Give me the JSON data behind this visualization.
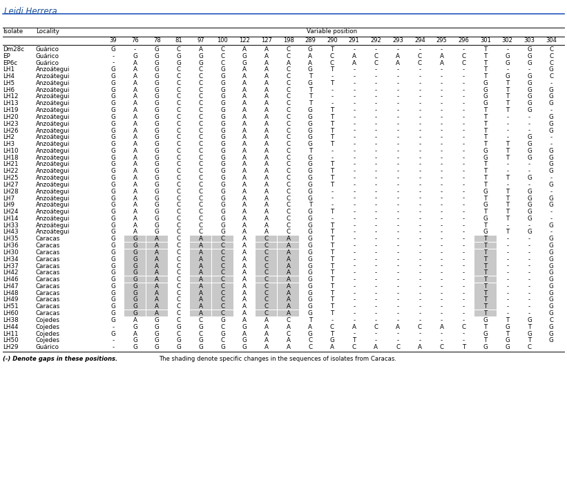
{
  "title": "Leidi Herrera",
  "col_header": [
    "39",
    "76",
    "78",
    "81",
    "97",
    "100",
    "122",
    "127",
    "198",
    "289",
    "290",
    "291",
    "292",
    "293",
    "294",
    "295",
    "296",
    "301",
    "302",
    "303",
    "304"
  ],
  "rows": [
    [
      "Dm28c",
      "Guárico",
      "G",
      "-",
      "G",
      "C",
      "A",
      "C",
      "A",
      "A",
      "C",
      "G",
      "T",
      "-",
      "-",
      "-",
      "-",
      "-",
      "-",
      "T",
      "-",
      "G",
      "C",
      false
    ],
    [
      "EP",
      "Guárico",
      "-",
      "G",
      "G",
      "G",
      "G",
      "C",
      "G",
      "A",
      "C",
      "A",
      "C",
      "A",
      "C",
      "A",
      "C",
      "A",
      "C",
      "T",
      "G",
      "G",
      "C",
      false
    ],
    [
      "EP6c",
      "Guárico",
      "-",
      "A",
      "G",
      "G",
      "G",
      "C",
      "G",
      "A",
      "A",
      "A",
      "C",
      "A",
      "C",
      "A",
      "C",
      "A",
      "C",
      "T",
      "G",
      "G",
      "C",
      false
    ],
    [
      "LH1",
      "Anzoátegui",
      "G",
      "A",
      "G",
      "C",
      "C",
      "G",
      "A",
      "A",
      "C",
      "G",
      "T",
      "-",
      "-",
      "-",
      "-",
      "-",
      "-",
      "T",
      "-",
      "-",
      "G",
      false
    ],
    [
      "LH4",
      "Anzoátegui",
      "G",
      "A",
      "G",
      "C",
      "C",
      "G",
      "A",
      "A",
      "C",
      "T",
      "-",
      "-",
      "-",
      "-",
      "-",
      "-",
      "-",
      "T",
      "G",
      "G",
      "C",
      false
    ],
    [
      "LH5",
      "Anzoátegui",
      "G",
      "A",
      "G",
      "C",
      "C",
      "G",
      "A",
      "A",
      "C",
      "G",
      "T",
      "-",
      "-",
      "-",
      "-",
      "-",
      "-",
      "G",
      "T",
      "G",
      "-",
      false
    ],
    [
      "LH6",
      "Anzoátegui",
      "G",
      "A",
      "G",
      "C",
      "C",
      "G",
      "A",
      "A",
      "C",
      "T",
      "-",
      "-",
      "-",
      "-",
      "-",
      "-",
      "-",
      "G",
      "T",
      "G",
      "G",
      false
    ],
    [
      "LH12",
      "Anzoátegui",
      "G",
      "A",
      "G",
      "C",
      "C",
      "G",
      "A",
      "A",
      "C",
      "T",
      "-",
      "-",
      "-",
      "-",
      "-",
      "-",
      "-",
      "G",
      "T",
      "G",
      "G",
      false
    ],
    [
      "LH13",
      "Anzoátegui",
      "G",
      "A",
      "G",
      "C",
      "C",
      "G",
      "A",
      "A",
      "C",
      "T",
      "-",
      "-",
      "-",
      "-",
      "-",
      "-",
      "-",
      "G",
      "T",
      "G",
      "G",
      false
    ],
    [
      "LH19",
      "Anzoátegui",
      "G",
      "A",
      "G",
      "C",
      "C",
      "G",
      "A",
      "A",
      "C",
      "G",
      "T",
      "-",
      "-",
      "-",
      "-",
      "-",
      "-",
      "T",
      "T",
      "G",
      "-",
      false
    ],
    [
      "LH20",
      "Anzoátegui",
      "G",
      "A",
      "G",
      "C",
      "C",
      "G",
      "A",
      "A",
      "C",
      "G",
      "T",
      "-",
      "-",
      "-",
      "-",
      "-",
      "-",
      "T",
      "-",
      "-",
      "G",
      false
    ],
    [
      "LH23",
      "Anzoátegui",
      "G",
      "A",
      "G",
      "C",
      "C",
      "G",
      "A",
      "A",
      "C",
      "G",
      "T",
      "-",
      "-",
      "-",
      "-",
      "-",
      "-",
      "T",
      "-",
      "-",
      "G",
      false
    ],
    [
      "LH26",
      "Anzoátegui",
      "G",
      "A",
      "G",
      "C",
      "C",
      "G",
      "A",
      "A",
      "C",
      "G",
      "T",
      "-",
      "-",
      "-",
      "-",
      "-",
      "-",
      "T",
      "-",
      "-",
      "G",
      false
    ],
    [
      "LH2",
      "Anzoátegui",
      "G",
      "A",
      "G",
      "C",
      "C",
      "G",
      "A",
      "A",
      "C",
      "G",
      "T",
      "-",
      "-",
      "-",
      "-",
      "-",
      "-",
      "T",
      "-",
      "G",
      "-",
      false
    ],
    [
      "LH3",
      "Anzoátegui",
      "G",
      "A",
      "G",
      "C",
      "C",
      "G",
      "A",
      "A",
      "C",
      "G",
      "T",
      "-",
      "-",
      "-",
      "-",
      "-",
      "-",
      "T",
      "T",
      "G",
      "-",
      false
    ],
    [
      "LH10",
      "Anzoátegui",
      "G",
      "A",
      "G",
      "C",
      "C",
      "G",
      "A",
      "A",
      "C",
      "T",
      "-",
      "-",
      "-",
      "-",
      "-",
      "-",
      "-",
      "G",
      "T",
      "G",
      "G",
      false
    ],
    [
      "LH18",
      "Anzoátegui",
      "G",
      "A",
      "G",
      "C",
      "C",
      "G",
      "A",
      "A",
      "C",
      "G",
      "-",
      "-",
      "-",
      "-",
      "-",
      "-",
      "-",
      "G",
      "T",
      "G",
      "G",
      false
    ],
    [
      "LH21",
      "Anzoátegui",
      "G",
      "A",
      "G",
      "C",
      "C",
      "G",
      "A",
      "A",
      "C",
      "G",
      "T",
      "-",
      "-",
      "-",
      "-",
      "-",
      "-",
      "T",
      "-",
      "-",
      "G",
      false
    ],
    [
      "LH22",
      "Anzoátegui",
      "G",
      "A",
      "G",
      "C",
      "C",
      "G",
      "A",
      "A",
      "C",
      "G",
      "T",
      "-",
      "-",
      "-",
      "-",
      "-",
      "-",
      "T",
      "-",
      "-",
      "G",
      false
    ],
    [
      "LH25",
      "Anzoátegui",
      "G",
      "A",
      "G",
      "C",
      "C",
      "G",
      "A",
      "A",
      "C",
      "G",
      "T",
      "-",
      "-",
      "-",
      "-",
      "-",
      "-",
      "T",
      "T",
      "G",
      "-",
      false
    ],
    [
      "LH27",
      "Anzoátegui",
      "G",
      "A",
      "G",
      "C",
      "C",
      "G",
      "A",
      "A",
      "C",
      "G",
      "T",
      "-",
      "-",
      "-",
      "-",
      "-",
      "-",
      "T",
      "-",
      "-",
      "G",
      false
    ],
    [
      "LH28",
      "Anzoátegui",
      "G",
      "A",
      "G",
      "C",
      "C",
      "G",
      "A",
      "A",
      "C",
      "G",
      "-",
      "-",
      "-",
      "-",
      "-",
      "-",
      "-",
      "G",
      "T",
      "G",
      "-",
      false
    ],
    [
      "LH7",
      "Anzoátegui",
      "G",
      "A",
      "G",
      "C",
      "C",
      "G",
      "A",
      "A",
      "C",
      "G",
      "-",
      "-",
      "-",
      "-",
      "-",
      "-",
      "-",
      "T",
      "T",
      "G",
      "G",
      false
    ],
    [
      "LH9",
      "Anzoátegui",
      "G",
      "A",
      "G",
      "C",
      "C",
      "G",
      "A",
      "A",
      "C",
      "T",
      "-",
      "-",
      "-",
      "-",
      "-",
      "-",
      "-",
      "G",
      "T",
      "G",
      "G",
      false
    ],
    [
      "LH24",
      "Anzoátegui",
      "G",
      "A",
      "G",
      "C",
      "C",
      "G",
      "A",
      "A",
      "C",
      "G",
      "T",
      "-",
      "-",
      "-",
      "-",
      "-",
      "-",
      "T",
      "T",
      "G",
      "-",
      false
    ],
    [
      "LH14",
      "Anzoátegui",
      "G",
      "A",
      "G",
      "C",
      "C",
      "G",
      "A",
      "A",
      "C",
      "G",
      "-",
      "-",
      "-",
      "-",
      "-",
      "-",
      "-",
      "G",
      "T",
      "G",
      "-",
      false
    ],
    [
      "LH33",
      "Anzoátegui",
      "G",
      "A",
      "G",
      "C",
      "C",
      "G",
      "A",
      "A",
      "C",
      "G",
      "T",
      "-",
      "-",
      "-",
      "-",
      "-",
      "-",
      "T",
      "-",
      "-",
      "G",
      false
    ],
    [
      "LH43",
      "Anzoátegui",
      "G",
      "A",
      "G",
      "C",
      "C",
      "G",
      "A",
      "A",
      "C",
      "G",
      "T",
      "-",
      "-",
      "-",
      "-",
      "-",
      "-",
      "G",
      "T",
      "G",
      "-",
      false
    ],
    [
      "LH35",
      "Caracas",
      "G",
      "G",
      "A",
      "C",
      "A",
      "C",
      "A",
      "C",
      "A",
      "G",
      "T",
      "-",
      "-",
      "-",
      "-",
      "-",
      "-",
      "T",
      "-",
      "-",
      "G",
      true
    ],
    [
      "LH36",
      "Caracas",
      "G",
      "G",
      "A",
      "C",
      "A",
      "C",
      "A",
      "C",
      "A",
      "G",
      "T",
      "-",
      "-",
      "-",
      "-",
      "-",
      "-",
      "T",
      "-",
      "-",
      "G",
      true
    ],
    [
      "LH30",
      "Caracas",
      "G",
      "G",
      "A",
      "C",
      "A",
      "C",
      "A",
      "C",
      "A",
      "G",
      "T",
      "-",
      "-",
      "-",
      "-",
      "-",
      "-",
      "T",
      "-",
      "-",
      "G",
      true
    ],
    [
      "LH34",
      "Caracas",
      "G",
      "G",
      "A",
      "C",
      "A",
      "C",
      "A",
      "C",
      "A",
      "G",
      "T",
      "-",
      "-",
      "-",
      "-",
      "-",
      "-",
      "T",
      "-",
      "-",
      "G",
      true
    ],
    [
      "LH37",
      "Caracas",
      "G",
      "G",
      "A",
      "C",
      "A",
      "C",
      "A",
      "C",
      "A",
      "G",
      "T",
      "-",
      "-",
      "-",
      "-",
      "-",
      "-",
      "T",
      "-",
      "-",
      "G",
      true
    ],
    [
      "LH42",
      "Caracas",
      "G",
      "G",
      "A",
      "C",
      "A",
      "C",
      "A",
      "C",
      "A",
      "G",
      "T",
      "-",
      "-",
      "-",
      "-",
      "-",
      "-",
      "T",
      "-",
      "-",
      "G",
      true
    ],
    [
      "LH46",
      "Caracas",
      "G",
      "G",
      "A",
      "C",
      "A",
      "C",
      "A",
      "C",
      "A",
      "G",
      "T",
      "-",
      "-",
      "-",
      "-",
      "-",
      "-",
      "T",
      "-",
      "-",
      "G",
      true
    ],
    [
      "LH47",
      "Caracas",
      "G",
      "G",
      "A",
      "C",
      "A",
      "C",
      "A",
      "C",
      "A",
      "G",
      "T",
      "-",
      "-",
      "-",
      "-",
      "-",
      "-",
      "T",
      "-",
      "-",
      "G",
      true
    ],
    [
      "LH48",
      "Caracas",
      "G",
      "G",
      "A",
      "C",
      "A",
      "C",
      "A",
      "C",
      "A",
      "G",
      "T",
      "-",
      "-",
      "-",
      "-",
      "-",
      "-",
      "T",
      "-",
      "-",
      "G",
      true
    ],
    [
      "LH49",
      "Caracas",
      "G",
      "G",
      "A",
      "C",
      "A",
      "C",
      "A",
      "C",
      "A",
      "G",
      "T",
      "-",
      "-",
      "-",
      "-",
      "-",
      "-",
      "T",
      "-",
      "-",
      "G",
      true
    ],
    [
      "LH51",
      "Caracas",
      "G",
      "G",
      "A",
      "C",
      "A",
      "C",
      "A",
      "C",
      "A",
      "G",
      "T",
      "-",
      "-",
      "-",
      "-",
      "-",
      "-",
      "T",
      "-",
      "-",
      "G",
      true
    ],
    [
      "LH60",
      "Caracas",
      "G",
      "G",
      "A",
      "C",
      "A",
      "C",
      "A",
      "C",
      "A",
      "G",
      "T",
      "-",
      "-",
      "-",
      "-",
      "-",
      "-",
      "T",
      "-",
      "-",
      "G",
      true
    ],
    [
      "LH38",
      "Cojedes",
      "G",
      "A",
      "G",
      "C",
      "C",
      "G",
      "A",
      "A",
      "C",
      "T",
      "-",
      "-",
      "-",
      "-",
      "-",
      "-",
      "-",
      "G",
      "T",
      "G",
      "C",
      false
    ],
    [
      "LH44",
      "Cojedes",
      "-",
      "G",
      "G",
      "G",
      "G",
      "C",
      "G",
      "A",
      "A",
      "A",
      "C",
      "A",
      "C",
      "A",
      "C",
      "A",
      "C",
      "T",
      "G",
      "T",
      "G",
      false
    ],
    [
      "LH11",
      "Cojedes",
      "G",
      "A",
      "G",
      "C",
      "C",
      "G",
      "A",
      "A",
      "C",
      "G",
      "T",
      "-",
      "-",
      "-",
      "-",
      "-",
      "-",
      "G",
      "T",
      "G",
      "G",
      false
    ],
    [
      "LH50",
      "Cojedes",
      "-",
      "G",
      "G",
      "G",
      "G",
      "C",
      "G",
      "A",
      "A",
      "C",
      "G",
      "T",
      "-",
      "-",
      "-",
      "-",
      "-",
      "T",
      "G",
      "T",
      "G",
      false
    ],
    [
      "LH29",
      "Guárico",
      "-",
      "G",
      "G",
      "G",
      "G",
      "G",
      "G",
      "A",
      "A",
      "C",
      "A",
      "C",
      "A",
      "C",
      "A",
      "C",
      "T",
      "G",
      "G",
      "C",
      "",
      false
    ]
  ],
  "footnote1": "(-) Denote gaps in these positions.",
  "footnote2": "The shading denote specific changes in the sequences of isolates from Caracas.",
  "bg_color": "#ffffff",
  "shading_color": "#c8c8c8",
  "title_color": "#1a4f99",
  "font_size": 6.3,
  "shaded_var_indices": [
    1,
    2,
    4,
    5,
    7,
    8,
    17
  ]
}
